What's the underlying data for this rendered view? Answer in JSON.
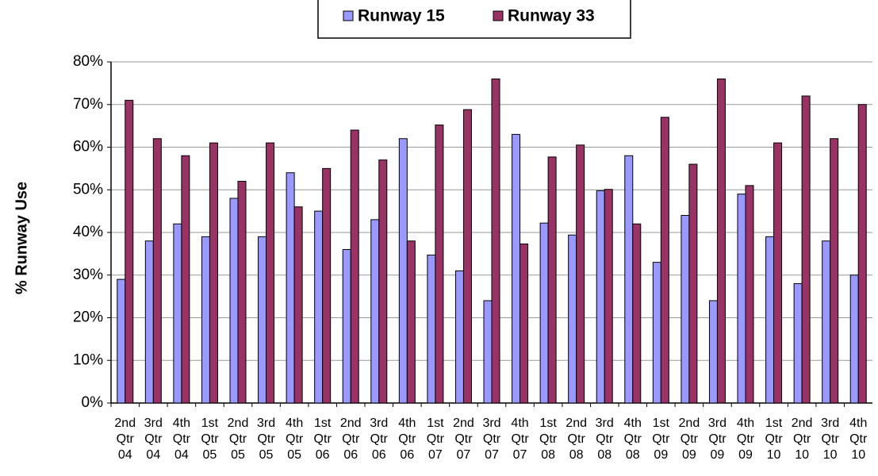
{
  "chart_data": {
    "type": "bar",
    "y_label": "% Runway Use",
    "categories": [
      "2nd Qtr 04",
      "3rd Qtr 04",
      "4th Qtr 04",
      "1st Qtr 05",
      "2nd Qtr 05",
      "3rd Qtr 05",
      "4th Qtr 05",
      "1st Qtr 06",
      "2nd Qtr 06",
      "3rd Qtr 06",
      "4th Qtr 06",
      "1st Qtr 07",
      "2nd Qtr 07",
      "3rd Qtr 07",
      "4th Qtr 07",
      "1st Qtr 08",
      "2nd Qtr 08",
      "3rd Qtr 08",
      "4th Qtr 08",
      "1st Qtr 09",
      "2nd Qtr 09",
      "3rd Qtr 09",
      "4th Qtr 09",
      "1st Qtr 10",
      "2nd Qtr 10",
      "3rd Qtr 10",
      "4th Qtr 10"
    ],
    "series": [
      {
        "name": "Runway 15",
        "color": "#9999ff",
        "values": [
          29,
          38,
          42,
          39,
          48,
          39,
          54,
          45,
          36,
          43,
          62,
          34.7,
          31,
          24,
          63,
          42.2,
          39.4,
          49.8,
          58,
          33,
          44,
          24,
          49,
          39,
          28,
          38,
          30
        ]
      },
      {
        "name": "Runway 33",
        "color": "#993366",
        "values": [
          71,
          62,
          58,
          61,
          52,
          61,
          46,
          55,
          64,
          57,
          38,
          65.2,
          68.8,
          76,
          37.3,
          57.7,
          60.5,
          50.1,
          42,
          67,
          56,
          76,
          51,
          61,
          72,
          62,
          70
        ]
      }
    ],
    "ylim": [
      0,
      80
    ],
    "yticks": [
      {
        "value": 0,
        "label": "0%"
      },
      {
        "value": 10,
        "label": "10%"
      },
      {
        "value": 20,
        "label": "20%"
      },
      {
        "value": 30,
        "label": "30%"
      },
      {
        "value": 40,
        "label": "40%"
      },
      {
        "value": 50,
        "label": "50%"
      },
      {
        "value": 60,
        "label": "60%"
      },
      {
        "value": 70,
        "label": "70%"
      },
      {
        "value": 80,
        "label": "80%"
      }
    ],
    "grid": true,
    "legend": "top"
  }
}
